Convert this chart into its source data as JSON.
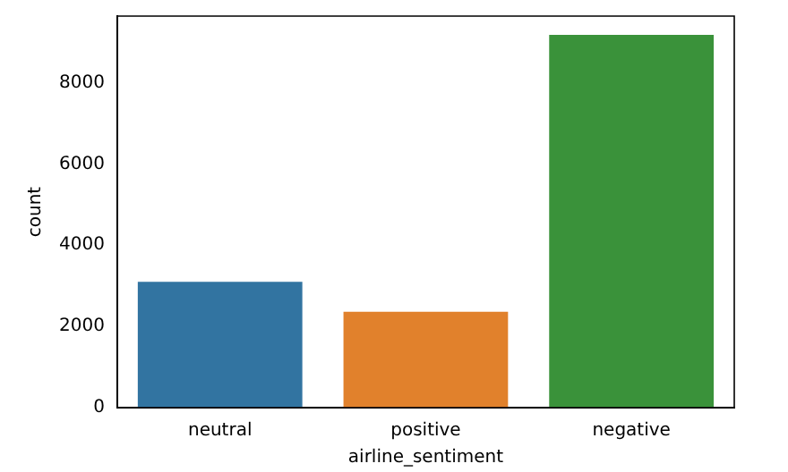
{
  "chart_data": {
    "type": "bar",
    "xlabel": "airline_sentiment",
    "ylabel": "count",
    "categories": [
      "neutral",
      "positive",
      "negative"
    ],
    "values": [
      3100,
      2360,
      9180
    ],
    "colors": [
      "#3274a1",
      "#e1812c",
      "#3a923a"
    ],
    "ylim": [
      0,
      9640
    ],
    "yticks": [
      0,
      2000,
      4000,
      6000,
      8000
    ],
    "grid": false,
    "legend": false
  }
}
